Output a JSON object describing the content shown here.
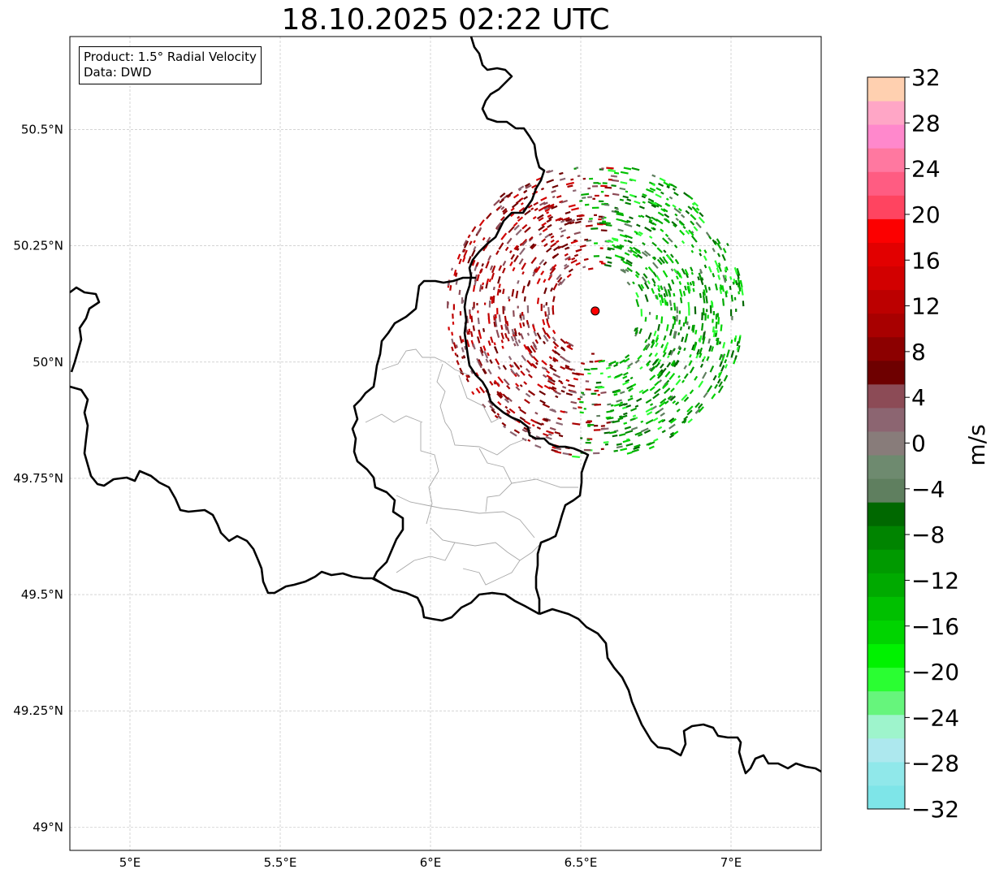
{
  "title": "18.10.2025 02:22 UTC",
  "info": {
    "product": "Product: 1.5° Radial Velocity",
    "data_source": "Data: DWD"
  },
  "map": {
    "lon_range": [
      4.8,
      7.3
    ],
    "lat_range": [
      48.95,
      50.7
    ],
    "lon_ticks": [
      {
        "value": 5.0,
        "label": "5°E"
      },
      {
        "value": 5.5,
        "label": "5.5°E"
      },
      {
        "value": 6.0,
        "label": "6°E"
      },
      {
        "value": 6.5,
        "label": "6.5°E"
      },
      {
        "value": 7.0,
        "label": "7°E"
      }
    ],
    "lat_ticks": [
      {
        "value": 49.0,
        "label": "49°N"
      },
      {
        "value": 49.25,
        "label": "49.25°N"
      },
      {
        "value": 49.5,
        "label": "49.5°N"
      },
      {
        "value": 49.75,
        "label": "49.75°N"
      },
      {
        "value": 50.0,
        "label": "50°N"
      },
      {
        "value": 50.25,
        "label": "50.25°N"
      },
      {
        "value": 50.5,
        "label": "50.5°N"
      }
    ],
    "radar_site": {
      "lon": 6.548,
      "lat": 50.11
    },
    "radar_range_deg_lon": 0.5,
    "radar_range_deg_lat": 0.32
  },
  "colorbar": {
    "label": "m/s",
    "min": -32,
    "max": 32,
    "tick_values": [
      32,
      28,
      24,
      20,
      16,
      12,
      8,
      4,
      0,
      -4,
      -8,
      -12,
      -16,
      -20,
      -24,
      -28,
      -32
    ],
    "tick_labels": [
      "32",
      "28",
      "24",
      "20",
      "16",
      "12",
      "8",
      "4",
      "0",
      "−4",
      "−8",
      "−12",
      "−16",
      "−20",
      "−24",
      "−28",
      "−32"
    ],
    "colors": [
      "#7ee5e8",
      "#90e8ea",
      "#ade8ee",
      "#9ef4cc",
      "#66f57c",
      "#2afe32",
      "#00f200",
      "#00d400",
      "#00c000",
      "#00aa00",
      "#009a00",
      "#008400",
      "#006800",
      "#5f7f5f",
      "#6e8a6f",
      "#887c7a",
      "#8c6571",
      "#8c4b56",
      "#6e0000",
      "#8c0000",
      "#a80000",
      "#bc0000",
      "#d20000",
      "#e20000",
      "#fc0000",
      "#ff4460",
      "#ff5c82",
      "#ff78a0",
      "#ff88cc",
      "#ffa6c6",
      "#ffd0b0"
    ]
  }
}
